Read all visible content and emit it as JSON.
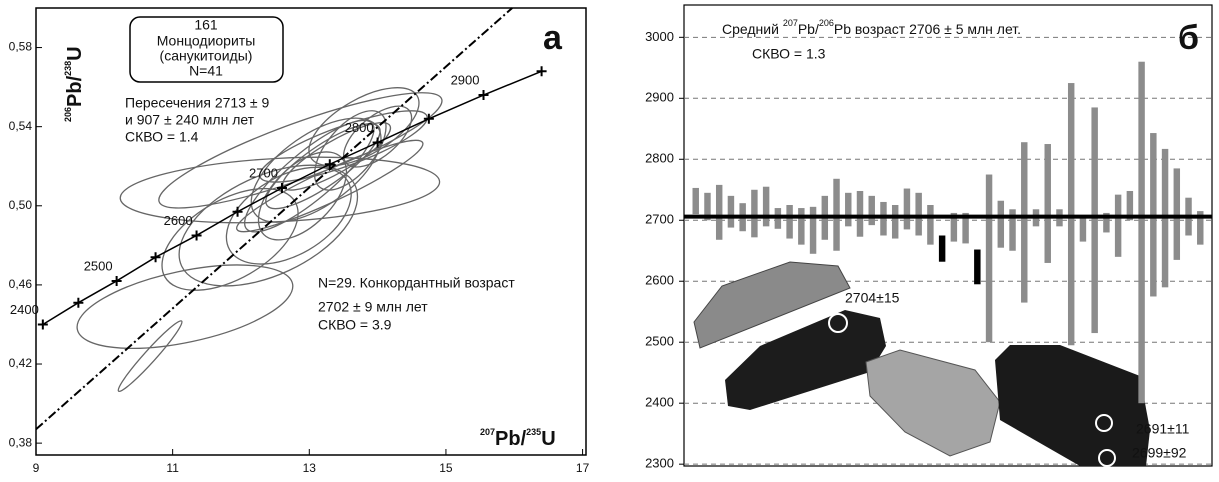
{
  "chart_data": [
    {
      "type": "concordia",
      "panel_label": "а",
      "x_label": [
        "207",
        "Pb/",
        "235",
        "U"
      ],
      "y_label": [
        "206",
        "Pb/",
        "238",
        "U"
      ],
      "box_lines": [
        "161",
        "Монцодиориты",
        "(санукитоиды)",
        "N=41"
      ],
      "intercept_lines": [
        "Пересечения 2713 ± 9",
        "и 907 ± 240 млн лет",
        "СКВО = 1.4"
      ],
      "concordant_lines": [
        "N=29. Конкордантный возраст",
        "2702 ± 9 млн лет",
        "СКВО = 3.9"
      ],
      "xlim": [
        9,
        17.05
      ],
      "ylim": [
        0.374,
        0.6
      ],
      "xticks": [
        9,
        11,
        13,
        15,
        17
      ],
      "yticks": [
        {
          "value": 0.38,
          "label": "0,38"
        },
        {
          "value": 0.42,
          "label": "0,42"
        },
        {
          "value": 0.46,
          "label": "0,46"
        },
        {
          "value": 0.5,
          "label": "0,50"
        },
        {
          "value": 0.54,
          "label": "0,54"
        },
        {
          "value": 0.58,
          "label": "0,58"
        }
      ],
      "concordia": {
        "x": [
          9.1,
          9.62,
          10.18,
          10.75,
          11.35,
          11.95,
          12.6,
          13.3,
          14.0,
          14.75,
          15.55,
          16.4
        ],
        "y": [
          0.44,
          0.451,
          0.462,
          0.474,
          0.485,
          0.497,
          0.509,
          0.521,
          0.532,
          0.544,
          0.556,
          0.568
        ],
        "ages": [
          2400,
          null,
          2500,
          null,
          2600,
          null,
          2700,
          null,
          2800,
          null,
          2900,
          null
        ]
      },
      "discordia": {
        "x": [
          9,
          15.97
        ],
        "y": [
          0.387,
          0.6
        ]
      },
      "ellipse_color": "#666666",
      "ellipses": [
        {
          "x": 10.67,
          "y": 0.424,
          "rx": 0.69,
          "ry": 0.003,
          "angle": -48
        },
        {
          "x": 11.18,
          "y": 0.449,
          "rx": 1.61,
          "ry": 0.018,
          "angle": -12
        },
        {
          "x": 12.57,
          "y": 0.508,
          "rx": 2.34,
          "ry": 0.016,
          "angle": -3
        },
        {
          "x": 12.87,
          "y": 0.528,
          "rx": 2.2,
          "ry": 0.014,
          "angle": -20
        },
        {
          "x": 11.84,
          "y": 0.483,
          "rx": 1.1,
          "ry": 0.02,
          "angle": -30
        },
        {
          "x": 13.2,
          "y": 0.52,
          "rx": 1.0,
          "ry": 0.01,
          "angle": -35
        },
        {
          "x": 13.0,
          "y": 0.515,
          "rx": 1.2,
          "ry": 0.012,
          "angle": -40
        },
        {
          "x": 13.4,
          "y": 0.525,
          "rx": 0.9,
          "ry": 0.008,
          "angle": -30
        },
        {
          "x": 13.5,
          "y": 0.53,
          "rx": 1.3,
          "ry": 0.01,
          "angle": -20
        },
        {
          "x": 12.9,
          "y": 0.505,
          "rx": 0.8,
          "ry": 0.015,
          "angle": -45
        },
        {
          "x": 13.3,
          "y": 0.51,
          "rx": 1.5,
          "ry": 0.008,
          "angle": -25
        },
        {
          "x": 13.6,
          "y": 0.528,
          "rx": 0.7,
          "ry": 0.012,
          "angle": -50
        },
        {
          "x": 13.1,
          "y": 0.518,
          "rx": 1.1,
          "ry": 0.018,
          "angle": -35
        },
        {
          "x": 14.0,
          "y": 0.535,
          "rx": 0.6,
          "ry": 0.01,
          "angle": -40
        },
        {
          "x": 12.7,
          "y": 0.495,
          "rx": 1.0,
          "ry": 0.02,
          "angle": -30
        },
        {
          "x": 12.4,
          "y": 0.49,
          "rx": 1.4,
          "ry": 0.025,
          "angle": -25
        },
        {
          "x": 13.8,
          "y": 0.54,
          "rx": 0.9,
          "ry": 0.014,
          "angle": -30
        }
      ]
    },
    {
      "type": "errorbar",
      "panel_label": "б",
      "title": [
        "Средний ",
        "207",
        "Pb/",
        "206",
        "Pb возраст   2706 ± 5 млн  лет."
      ],
      "subtitle": "СКВО = 1.3",
      "grain_labels": [
        "2704±15",
        "2691±11",
        "2699±92"
      ],
      "xlim": [
        0,
        45
      ],
      "ylim": [
        2297,
        3053
      ],
      "yticks": [
        2300,
        2400,
        2500,
        2600,
        2700,
        2800,
        2900,
        3000
      ],
      "grid": true,
      "mean": 2706,
      "series": [
        {
          "color": "#8c8c8c",
          "x": [
            1,
            2,
            3,
            4,
            5,
            6,
            7,
            8,
            9,
            10,
            11,
            12,
            13,
            14,
            15,
            16,
            17,
            18,
            19,
            20,
            21,
            23,
            24,
            26,
            27,
            28,
            29,
            30,
            31,
            32,
            33,
            34,
            35,
            36,
            37,
            38,
            39,
            40,
            41,
            42,
            43,
            44
          ],
          "values": [
            2731.5,
            2722.5,
            2713,
            2714,
            2705,
            2711,
            2722.5,
            2703,
            2697.5,
            2690,
            2683.5,
            2704,
            2709,
            2717.5,
            2710.5,
            2716,
            2702.5,
            2697.5,
            2718.5,
            2710,
            2692.5,
            2688.5,
            2687,
            2637.5,
            2693.5,
            2684,
            2696.5,
            2704,
            2727.5,
            2704,
            2710,
            2685,
            2700,
            2696,
            2691,
            2724,
            2680,
            2709,
            2703.5,
            2710,
            2706,
            2687.5
          ],
          "errors": [
            21.5,
            22.5,
            45,
            26,
            23,
            39,
            32.5,
            17,
            27.5,
            30,
            38.5,
            36,
            59,
            27.5,
            37.5,
            24,
            27.5,
            27.5,
            33.5,
            35,
            32.5,
            23.5,
            25,
            137.5,
            38.5,
            34,
            131.5,
            14,
            97.5,
            14,
            215,
            20,
            185,
            16,
            51,
            24,
            280,
            134,
            113.5,
            75,
            31,
            27.5
          ]
        },
        {
          "color": "#000000",
          "x": [
            22,
            25
          ],
          "values": [
            2653.5,
            2623.5
          ],
          "errors": [
            21.5,
            28.5
          ]
        }
      ]
    }
  ]
}
